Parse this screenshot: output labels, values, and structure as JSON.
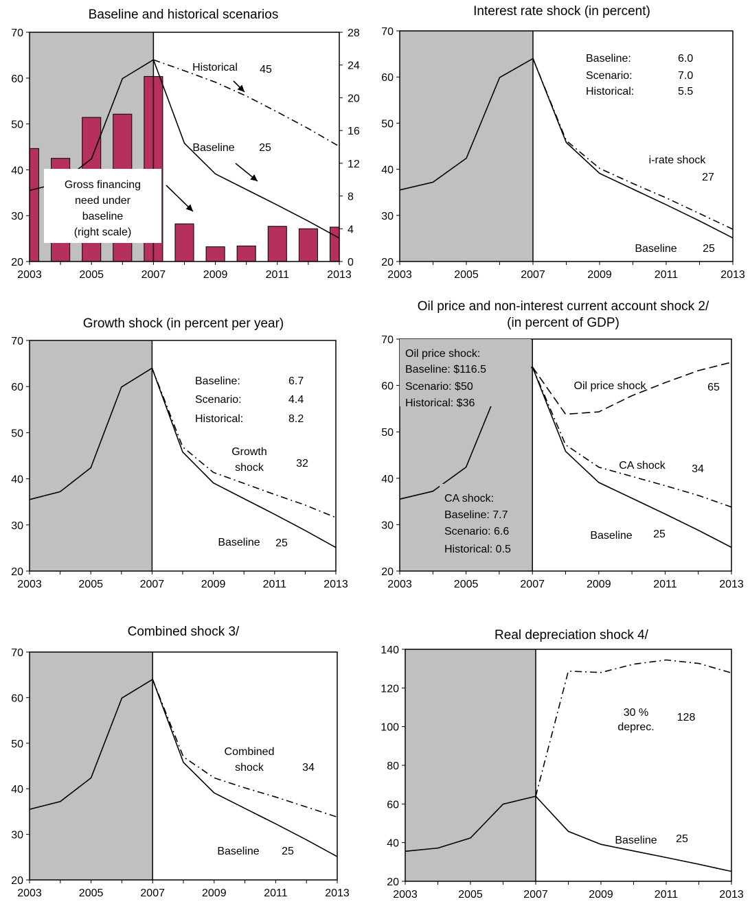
{
  "chart_data": [
    {
      "type": "line",
      "title": "Baseline and historical scenarios",
      "xlabel": "",
      "ylabel": "",
      "ylim": [
        20,
        70
      ],
      "y2lim": [
        0,
        28
      ],
      "yticks": [
        20,
        30,
        40,
        50,
        60,
        70
      ],
      "y2ticks": [
        0,
        4,
        8,
        12,
        16,
        20,
        24,
        28
      ],
      "x": [
        2003,
        2004,
        2005,
        2006,
        2007,
        2008,
        2009,
        2010,
        2011,
        2012,
        2013
      ],
      "xticks": [
        2003,
        2005,
        2007,
        2009,
        2011,
        2013
      ],
      "shaded_range": [
        2003,
        2007
      ],
      "bar_color": "#B5305F",
      "bars": {
        "name": "Gross financing need under baseline (right scale)",
        "axis": "right",
        "values": [
          13.8,
          12.6,
          17.6,
          18.0,
          22.6,
          4.6,
          1.8,
          1.9,
          4.3,
          4.0,
          4.2
        ]
      },
      "series": [
        {
          "name": "Baseline",
          "style": "solid",
          "values": [
            35.5,
            37.2,
            42.4,
            59.9,
            64.0,
            45.8,
            39.1,
            35.7,
            32.3,
            28.8,
            25.1
          ]
        },
        {
          "name": "Historical",
          "style": "dashdot",
          "values": [
            null,
            null,
            null,
            null,
            64.0,
            61.6,
            59.1,
            56.1,
            52.6,
            49.0,
            45.1
          ]
        }
      ],
      "annotations": [
        {
          "text": "Historical",
          "value": "45"
        },
        {
          "text": "Baseline",
          "value": "25"
        }
      ],
      "box_lines": [
        "Gross financing",
        "need under",
        "baseline",
        "(right scale)"
      ]
    },
    {
      "type": "line",
      "title": "Interest rate shock (in percent)",
      "ylim": [
        20,
        70
      ],
      "yticks": [
        20,
        30,
        40,
        50,
        60,
        70
      ],
      "x": [
        2003,
        2004,
        2005,
        2006,
        2007,
        2008,
        2009,
        2010,
        2011,
        2012,
        2013
      ],
      "xticks": [
        2003,
        2005,
        2007,
        2009,
        2011,
        2013
      ],
      "shaded_range": [
        2003,
        2007
      ],
      "series": [
        {
          "name": "Baseline",
          "style": "solid",
          "values": [
            35.5,
            37.2,
            42.4,
            59.9,
            64.0,
            45.8,
            39.1,
            35.7,
            32.3,
            28.8,
            25.1
          ]
        },
        {
          "name": "i-rate shock",
          "style": "dashdot",
          "values": [
            null,
            null,
            null,
            null,
            64.0,
            46.2,
            40.2,
            36.9,
            33.8,
            30.4,
            27.0
          ]
        }
      ],
      "info_rows": [
        {
          "label": "Baseline:",
          "value": "6.0"
        },
        {
          "label": "Scenario:",
          "value": "7.0"
        },
        {
          "label": "Historical:",
          "value": "5.5"
        }
      ],
      "annotations": [
        {
          "text": "i-rate shock",
          "value": "27"
        },
        {
          "text": "Baseline",
          "value": "25"
        }
      ]
    },
    {
      "type": "line",
      "title": "Growth shock (in percent per year)",
      "ylim": [
        20,
        70
      ],
      "yticks": [
        20,
        30,
        40,
        50,
        60,
        70
      ],
      "x": [
        2003,
        2004,
        2005,
        2006,
        2007,
        2008,
        2009,
        2010,
        2011,
        2012,
        2013
      ],
      "xticks": [
        2003,
        2005,
        2007,
        2009,
        2011,
        2013
      ],
      "shaded_range": [
        2003,
        2007
      ],
      "series": [
        {
          "name": "Baseline",
          "style": "solid",
          "values": [
            35.5,
            37.2,
            42.4,
            59.9,
            64.0,
            45.8,
            39.1,
            35.7,
            32.3,
            28.8,
            25.1
          ]
        },
        {
          "name": "Growth shock",
          "style": "dashdot",
          "values": [
            null,
            null,
            null,
            null,
            64.0,
            46.9,
            41.4,
            39.0,
            36.6,
            34.3,
            31.6
          ]
        }
      ],
      "info_rows": [
        {
          "label": "Baseline:",
          "value": "6.7"
        },
        {
          "label": "Scenario:",
          "value": "4.4"
        },
        {
          "label": "Historical:",
          "value": "8.2"
        }
      ],
      "annotations": [
        {
          "text": "Growth shock",
          "lines": [
            "Growth",
            "shock"
          ],
          "value": "32"
        },
        {
          "text": "Baseline",
          "value": "25"
        }
      ]
    },
    {
      "type": "line",
      "title": "Oil price and non-interest current account shock 2/",
      "subtitle": "(in percent of GDP)",
      "ylim": [
        20,
        70
      ],
      "yticks": [
        20,
        30,
        40,
        50,
        60,
        70
      ],
      "x": [
        2003,
        2004,
        2005,
        2006,
        2007,
        2008,
        2009,
        2010,
        2011,
        2012,
        2013
      ],
      "xticks": [
        2003,
        2005,
        2007,
        2009,
        2011,
        2013
      ],
      "shaded_range": [
        2003,
        2007
      ],
      "series": [
        {
          "name": "Baseline",
          "style": "solid",
          "values": [
            35.5,
            37.2,
            42.4,
            59.9,
            64.0,
            45.8,
            39.1,
            35.7,
            32.3,
            28.8,
            25.1
          ]
        },
        {
          "name": "Oil price shock",
          "style": "dashed",
          "values": [
            null,
            null,
            null,
            null,
            64.0,
            53.8,
            54.3,
            57.8,
            60.6,
            63.2,
            65.0
          ]
        },
        {
          "name": "CA shock",
          "style": "dashdot",
          "values": [
            null,
            null,
            null,
            null,
            64.0,
            47.2,
            42.4,
            40.4,
            38.4,
            36.3,
            33.8
          ]
        }
      ],
      "oil_box": [
        "Oil price shock:",
        "Baseline: $116.5",
        "Scenario: $50",
        "Historical: $36"
      ],
      "ca_box": [
        "CA shock:",
        "Baseline: 7.7",
        "Scenario: 6.6",
        "Historical: 0.5"
      ],
      "annotations": [
        {
          "text": "Oil price shock",
          "value": "65"
        },
        {
          "text": "CA shock",
          "value": "34"
        },
        {
          "text": "Baseline",
          "value": "25"
        }
      ]
    },
    {
      "type": "line",
      "title": "Combined shock  3/",
      "ylim": [
        20,
        70
      ],
      "yticks": [
        20,
        30,
        40,
        50,
        60,
        70
      ],
      "x": [
        2003,
        2004,
        2005,
        2006,
        2007,
        2008,
        2009,
        2010,
        2011,
        2012,
        2013
      ],
      "xticks": [
        2003,
        2005,
        2007,
        2009,
        2011,
        2013
      ],
      "shaded_range": [
        2003,
        2007
      ],
      "series": [
        {
          "name": "Baseline",
          "style": "solid",
          "values": [
            35.5,
            37.2,
            42.4,
            59.9,
            64.0,
            45.8,
            39.1,
            35.7,
            32.3,
            28.8,
            25.1
          ]
        },
        {
          "name": "Combined shock",
          "style": "dashdot",
          "values": [
            null,
            null,
            null,
            null,
            64.0,
            47.0,
            42.4,
            40.2,
            38.2,
            36.0,
            33.8
          ]
        }
      ],
      "annotations": [
        {
          "text": "Combined shock",
          "lines": [
            "Combined",
            "shock"
          ],
          "value": "34"
        },
        {
          "text": "Baseline",
          "value": "25"
        }
      ]
    },
    {
      "type": "line",
      "title": "Real depreciation shock  4/",
      "ylim": [
        20,
        140
      ],
      "yticks": [
        20,
        40,
        60,
        80,
        100,
        120,
        140
      ],
      "x": [
        2003,
        2004,
        2005,
        2006,
        2007,
        2008,
        2009,
        2010,
        2011,
        2012,
        2013
      ],
      "xticks": [
        2003,
        2005,
        2007,
        2009,
        2011,
        2013
      ],
      "shaded_range": [
        2003,
        2007
      ],
      "series": [
        {
          "name": "Baseline",
          "style": "solid",
          "values": [
            35.5,
            37.2,
            42.4,
            59.9,
            64.0,
            45.8,
            39.1,
            35.7,
            32.3,
            28.8,
            25.1
          ]
        },
        {
          "name": "30 % deprec.",
          "style": "dashdot",
          "values": [
            null,
            null,
            null,
            null,
            64.0,
            128.7,
            128.0,
            132.3,
            134.5,
            132.7,
            127.8
          ]
        }
      ],
      "annotations": [
        {
          "text": "30 % deprec.",
          "lines": [
            "30 %",
            "deprec."
          ],
          "value": "128"
        },
        {
          "text": "Baseline",
          "value": "25"
        }
      ]
    }
  ]
}
